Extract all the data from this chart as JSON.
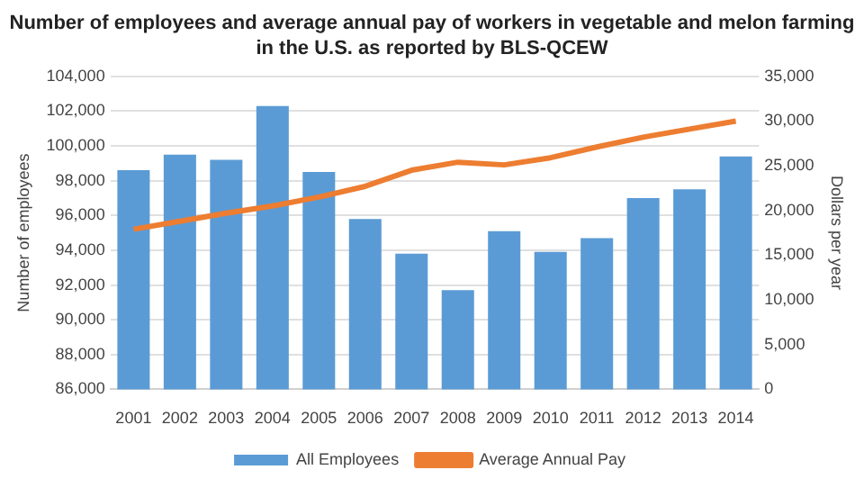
{
  "chart_data": {
    "type": "bar",
    "title": "Number of employees and average annual pay of workers in vegetable and melon farming in the U.S. as reported by BLS-QCEW",
    "ylabel": "Number of employees",
    "y2label": "Dollars per year",
    "categories": [
      "2001",
      "2002",
      "2003",
      "2004",
      "2005",
      "2006",
      "2007",
      "2008",
      "2009",
      "2010",
      "2011",
      "2012",
      "2013",
      "2014"
    ],
    "series": [
      {
        "name": "All Employees",
        "color": "#5b9bd5",
        "values": [
          98600,
          99500,
          99200,
          102300,
          98500,
          95800,
          93800,
          91700,
          95100,
          93900,
          94700,
          97000,
          97500,
          99400
        ]
      },
      {
        "name": "Average Annual Pay",
        "type": "line",
        "axis": "y2",
        "color": "#ed7d31",
        "values": [
          17900,
          18800,
          19700,
          20500,
          21500,
          22700,
          24500,
          25400,
          25100,
          25900,
          27100,
          28200,
          29100,
          30000
        ]
      }
    ],
    "ylim": [
      86000,
      104000
    ],
    "yticks": [
      {
        "value": 86000,
        "label": "86,000"
      },
      {
        "value": 88000,
        "label": "88,000"
      },
      {
        "value": 90000,
        "label": "90,000"
      },
      {
        "value": 92000,
        "label": "92,000"
      },
      {
        "value": 94000,
        "label": "94,000"
      },
      {
        "value": 96000,
        "label": "96,000"
      },
      {
        "value": 98000,
        "label": "98,000"
      },
      {
        "value": 100000,
        "label": "100,000"
      },
      {
        "value": 102000,
        "label": "102,000"
      },
      {
        "value": 104000,
        "label": "104,000"
      }
    ],
    "y2lim": [
      0,
      35000
    ],
    "y2ticks": [
      0,
      {
        "value": 5000,
        "label": "5,000"
      },
      {
        "value": 10000,
        "label": "10,000"
      },
      {
        "value": 15000,
        "label": "15,000"
      },
      {
        "value": 20000,
        "label": "20,000"
      },
      {
        "value": 25000,
        "label": "25,000"
      },
      {
        "value": 30000,
        "label": "30,000"
      },
      {
        "value": 35000,
        "label": "35,000"
      }
    ],
    "grid": "y",
    "legend": "bottom",
    "marker": "none"
  }
}
